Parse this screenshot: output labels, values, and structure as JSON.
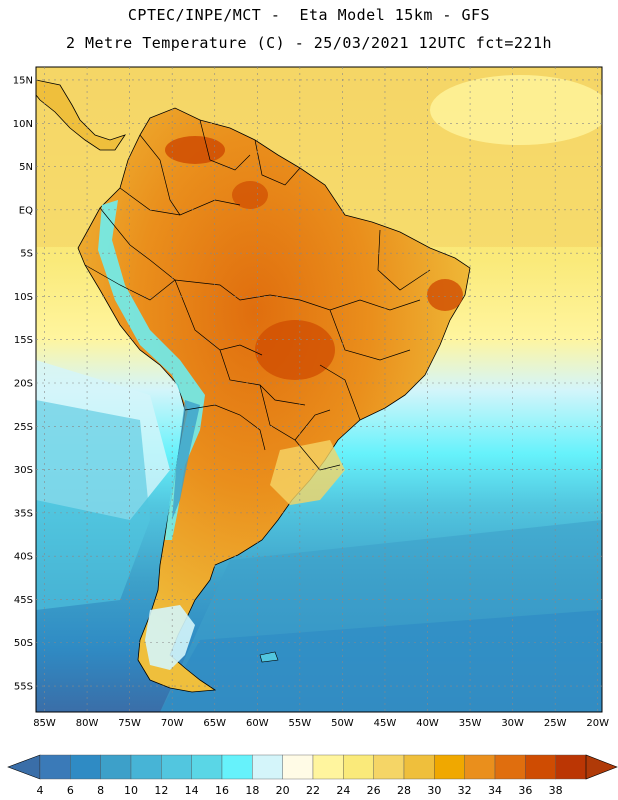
{
  "header": {
    "title_line1": "CPTEC/INPE/MCT -  Eta Model 15km - GFS",
    "title_line2": "2 Metre Temperature (C) - 25/03/2021 12UTC fct=221h"
  },
  "map": {
    "lat_labels": [
      "15N",
      "10N",
      "5N",
      "EQ",
      "5S",
      "10S",
      "15S",
      "20S",
      "25S",
      "30S",
      "35S",
      "40S",
      "45S",
      "50S",
      "55S"
    ],
    "lat_values": [
      15,
      10,
      5,
      0,
      -5,
      -10,
      -15,
      -20,
      -25,
      -30,
      -35,
      -40,
      -45,
      -50,
      -55
    ],
    "lon_labels": [
      "85W",
      "80W",
      "75W",
      "70W",
      "65W",
      "60W",
      "55W",
      "50W",
      "45W",
      "40W",
      "35W",
      "30W",
      "25W",
      "20W"
    ],
    "lon_values": [
      -85,
      -80,
      -75,
      -70,
      -65,
      -60,
      -55,
      -50,
      -45,
      -40,
      -35,
      -30,
      -25,
      -20
    ],
    "lat_range": [
      -58,
      16.5
    ],
    "lon_range": [
      -86,
      -19.5
    ]
  },
  "colorbar": {
    "ticks": [
      "4",
      "6",
      "8",
      "10",
      "12",
      "14",
      "16",
      "18",
      "20",
      "22",
      "24",
      "26",
      "28",
      "30",
      "32",
      "34",
      "36",
      "38"
    ],
    "colors": [
      "#3a7ab8",
      "#2f8bc4",
      "#3da0c9",
      "#47b4d6",
      "#52c6df",
      "#5ad6e6",
      "#66f2fb",
      "#d4f5fa",
      "#fffbe6",
      "#fff59e",
      "#faea7a",
      "#f5d566",
      "#efbf3c",
      "#f0a800",
      "#ea8f1c",
      "#e06e0e",
      "#cf4c02",
      "#bb3604"
    ],
    "low_color": "#3a6ea8",
    "high_color": "#b03a08"
  }
}
